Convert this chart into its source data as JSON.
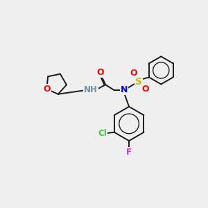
{
  "background_color": "#efefef",
  "bond_color": "#1a1a1a",
  "atom_colors": {
    "O": "#ff0000",
    "N": "#0000ee",
    "H": "#7090a0",
    "Cl": "#33cc33",
    "F": "#cc33cc",
    "S": "#ccbb00",
    "C": "#1a1a1a"
  },
  "figsize": [
    3.0,
    3.0
  ],
  "dpi": 100
}
